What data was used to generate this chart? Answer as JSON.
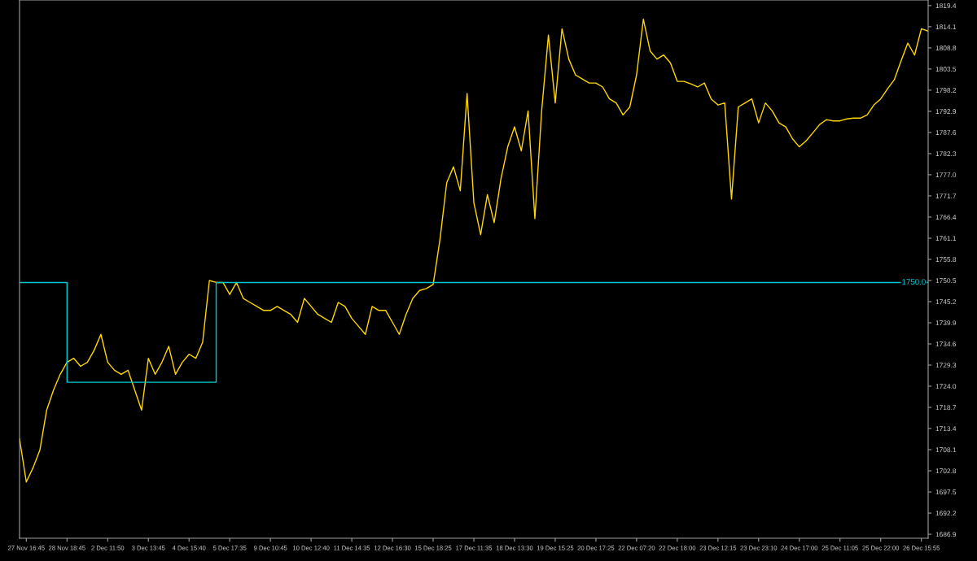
{
  "chart_data": {
    "type": "line",
    "categories": [
      null,
      "27 Nov 16:45",
      null,
      null,
      null,
      null,
      null,
      "28 Nov 18:45",
      null,
      null,
      null,
      null,
      null,
      "2 Dec 11:50",
      null,
      null,
      null,
      null,
      null,
      "3 Dec 13:45",
      null,
      null,
      null,
      null,
      null,
      "4 Dec 15:40",
      null,
      null,
      null,
      null,
      null,
      "5 Dec 17:35",
      null,
      null,
      null,
      null,
      null,
      "9 Dec 10:45",
      null,
      null,
      null,
      null,
      null,
      "10 Dec 12:40",
      null,
      null,
      null,
      null,
      null,
      "11 Dec 14:35",
      null,
      null,
      null,
      null,
      null,
      "12 Dec 16:30",
      null,
      null,
      null,
      null,
      null,
      "15 Dec 18:25",
      null,
      null,
      null,
      null,
      null,
      "17 Dec 11:35",
      null,
      null,
      null,
      null,
      null,
      "18 Dec 13:30",
      null,
      null,
      null,
      null,
      null,
      "19 Dec 15:25",
      null,
      null,
      null,
      null,
      null,
      "20 Dec 17:25",
      null,
      null,
      null,
      null,
      null,
      "22 Dec 07:20",
      null,
      null,
      null,
      null,
      null,
      "22 Dec 18:00",
      null,
      null,
      null,
      null,
      null,
      "23 Dec 12:15",
      null,
      null,
      null,
      null,
      null,
      "23 Dec 23:10",
      null,
      null,
      null,
      null,
      null,
      "24 Dec 17:00",
      null,
      null,
      null,
      null,
      null,
      "25 Dec 11:05",
      null,
      null,
      null,
      null,
      null,
      "25 Dec 22:00",
      null,
      null,
      null,
      null,
      null,
      "26 Dec 15:55",
      null
    ],
    "ylim": [
      1685.9,
      1820.8
    ],
    "yticks": [
      1819.4,
      1814.1,
      1808.8,
      1803.5,
      1798.2,
      1792.9,
      1787.6,
      1782.3,
      {
        "value": 1777,
        "label": "1777.0"
      },
      1771.7,
      1766.4,
      1761.1,
      1755.8,
      1750.5,
      1745.2,
      1739.9,
      1734.6,
      1729.3,
      {
        "value": 1724,
        "label": "1724.0"
      },
      1718.7,
      1713.4,
      1708.1,
      1702.8,
      1697.5,
      1692.2,
      1686.9
    ],
    "grid": false,
    "marker": "none",
    "line_style": "solid",
    "series": [
      {
        "color": "#ffd700",
        "values": [
          1710.8,
          1700,
          1703.6,
          1708,
          1718,
          1723,
          1727,
          1730,
          1731,
          1729,
          1730,
          1733,
          1737,
          1730,
          1728,
          1727,
          1728,
          1723,
          1718,
          1731,
          1727,
          1730,
          1734,
          1727,
          1730,
          1732,
          1731,
          1735,
          1750.5,
          1750,
          1750,
          1747,
          1750,
          1746,
          1745,
          1744,
          1743,
          1743,
          1744,
          1743,
          1742,
          1740,
          1746,
          1744,
          1742,
          1741,
          1740,
          1745,
          1744,
          1741,
          1739,
          1737,
          1744,
          1743,
          1743,
          1740,
          1737,
          1742,
          1746,
          1748,
          1748.5,
          1749.5,
          1760.7,
          1775,
          1779,
          1773,
          1797.4,
          1770,
          1762,
          1772,
          1765,
          1776,
          1784,
          1789,
          1783,
          1793,
          1766,
          1793,
          1812,
          1795,
          1813.6,
          1806,
          1802,
          1801,
          1800,
          1800,
          1799,
          1796,
          1795,
          1792,
          1794,
          1802,
          1816,
          1808,
          1806,
          1807,
          1805,
          1800.4,
          1800.4,
          1799.8,
          1799,
          1800,
          1796,
          1794.5,
          1795,
          1770.9,
          1794,
          1795,
          1796,
          1790,
          1795,
          1793,
          1790,
          1789,
          1786,
          1784,
          1785.5,
          1787.5,
          1789.6,
          1790.8,
          1790.5,
          1790.5,
          1791,
          1791.2,
          1791.2,
          1792,
          1794.5,
          1796,
          1798.5,
          1800.8,
          1805.5,
          1810,
          1807,
          1813.6,
          1813
        ]
      },
      {
        "type": "step",
        "color": "#00c8d2",
        "values": [
          1750.0,
          1750.0,
          1750.0,
          1750.0,
          1750.0,
          1750.0,
          1750.0,
          1725.0,
          1725.0,
          1725.0,
          1725.0,
          1725.0,
          1725.0,
          1725.0,
          1725.0,
          1725.0,
          1725.0,
          1725.0,
          1725.0,
          1725.0,
          1725.0,
          1725.0,
          1725.0,
          1725.0,
          1725.0,
          1725.0,
          1725.0,
          1725.0,
          1725.0,
          1750.0,
          1750.0,
          1750.0,
          1750.0,
          1750.0,
          1750.0,
          1750.0,
          1750.0,
          1750.0,
          1750.0,
          1750.0,
          1750.0,
          1750.0,
          1750.0,
          1750.0,
          1750.0,
          1750.0,
          1750.0,
          1750.0,
          1750.0,
          1750.0,
          1750.0,
          1750.0,
          1750.0,
          1750.0,
          1750.0,
          1750.0,
          1750.0,
          1750.0,
          1750.0,
          1750.0,
          1750.0,
          1750.0,
          1750.0,
          1750.0,
          1750.0,
          1750.0,
          1750.0,
          1750.0,
          1750.0,
          1750.0,
          1750.0,
          1750.0,
          1750.0,
          1750.0,
          1750.0,
          1750.0,
          1750.0,
          1750.0,
          1750.0,
          1750.0,
          1750.0,
          1750.0,
          1750.0,
          1750.0,
          1750.0,
          1750.0,
          1750.0,
          1750.0,
          1750.0,
          1750.0,
          1750.0,
          1750.0,
          1750.0,
          1750.0,
          1750.0,
          1750.0,
          1750.0,
          1750.0,
          1750.0,
          1750.0,
          1750.0,
          1750.0,
          1750.0,
          1750.0,
          1750.0,
          1750.0,
          1750.0,
          1750.0,
          1750.0,
          1750.0,
          1750.0,
          1750.0,
          1750.0,
          1750.0,
          1750.0,
          1750.0,
          1750.0,
          1750.0,
          1750.0,
          1750.0,
          1750.0,
          1750.0,
          1750.0,
          1750.0,
          1750.0,
          1750.0,
          1750.0,
          1750.0,
          1750.0,
          1750.0,
          1750.0,
          1750.0,
          1750.0,
          1750.0,
          1750.0
        ]
      }
    ],
    "annotations": [
      {
        "text": "1750.0",
        "y": 1750.0
      }
    ]
  }
}
